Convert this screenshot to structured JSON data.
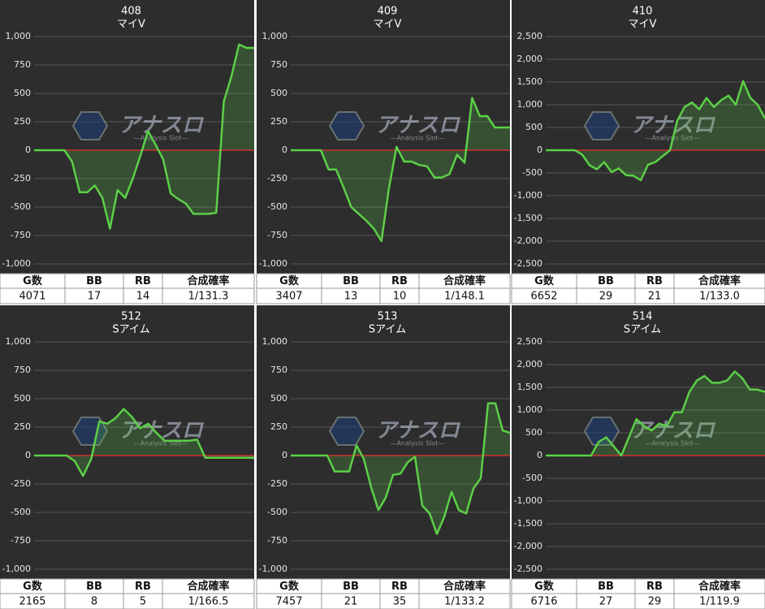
{
  "watermark": {
    "title": "アナスロ",
    "subtitle": "—Analysis Slot—"
  },
  "chart_data": [
    {
      "type": "line",
      "title": "408",
      "subtitle": "マイV",
      "color": "#5ccf48",
      "zero_line_color": "#c8322c",
      "grid": true,
      "ylim": [
        -1000,
        1000
      ],
      "yticks": [
        {
          "value": -1000,
          "label": "-1,000"
        },
        -750,
        -500,
        -250,
        0,
        250,
        500,
        750,
        {
          "value": 1000,
          "label": "1,000"
        }
      ],
      "values": [
        0,
        0,
        0,
        0,
        0,
        -100,
        -370,
        -370,
        -310,
        -420,
        -690,
        -350,
        -420,
        -250,
        -50,
        170,
        50,
        -80,
        -380,
        -430,
        -470,
        -560,
        -560,
        -560,
        -550,
        430,
        650,
        930,
        900,
        900
      ],
      "table": {
        "header": [
          "G数",
          "BB",
          "RB",
          "合成確率"
        ],
        "row": [
          4071,
          17,
          14,
          "1/131.3"
        ]
      }
    },
    {
      "type": "line",
      "title": "409",
      "subtitle": "マイV",
      "color": "#5ccf48",
      "zero_line_color": "#c8322c",
      "grid": true,
      "ylim": [
        -1000,
        1000
      ],
      "yticks": [
        {
          "value": -1000,
          "label": "-1,000"
        },
        -750,
        -500,
        -250,
        0,
        250,
        500,
        750,
        {
          "value": 1000,
          "label": "1,000"
        }
      ],
      "values": [
        0,
        0,
        0,
        0,
        0,
        -170,
        -170,
        -330,
        -500,
        -560,
        -620,
        -690,
        -800,
        -330,
        30,
        -100,
        -100,
        -130,
        -140,
        -240,
        -240,
        -210,
        -40,
        -110,
        460,
        300,
        300,
        200,
        200,
        200
      ],
      "table": {
        "header": [
          "G数",
          "BB",
          "RB",
          "合成確率"
        ],
        "row": [
          3407,
          13,
          10,
          "1/148.1"
        ]
      }
    },
    {
      "type": "line",
      "title": "410",
      "subtitle": "マイV",
      "color": "#5ccf48",
      "zero_line_color": "#c8322c",
      "grid": true,
      "ylim": [
        -2500,
        2500
      ],
      "yticks": [
        {
          "value": -2500,
          "label": "-2,500"
        },
        {
          "value": -2000,
          "label": "-2,000"
        },
        {
          "value": -1500,
          "label": "-1,500"
        },
        {
          "value": -1000,
          "label": "-1,000"
        },
        -500,
        0,
        500,
        {
          "value": 1000,
          "label": "1,000"
        },
        {
          "value": 1500,
          "label": "1,500"
        },
        {
          "value": 2000,
          "label": "2,000"
        },
        {
          "value": 2500,
          "label": "2,500"
        }
      ],
      "values": [
        0,
        0,
        0,
        0,
        0,
        -100,
        -330,
        -420,
        -260,
        -480,
        -400,
        -550,
        -560,
        -660,
        -320,
        -260,
        -130,
        0,
        650,
        950,
        1050,
        900,
        1150,
        950,
        1100,
        1200,
        1000,
        1520,
        1150,
        1000,
        700
      ],
      "table": {
        "header": [
          "G数",
          "BB",
          "RB",
          "合成確率"
        ],
        "row": [
          6652,
          29,
          21,
          "1/133.0"
        ]
      }
    },
    {
      "type": "line",
      "title": "512",
      "subtitle": "Sアイム",
      "color": "#5ccf48",
      "zero_line_color": "#c8322c",
      "grid": true,
      "ylim": [
        -1000,
        1000
      ],
      "yticks": [
        {
          "value": -1000,
          "label": "-1,000"
        },
        -750,
        -500,
        -250,
        0,
        250,
        500,
        750,
        {
          "value": 1000,
          "label": "1,000"
        }
      ],
      "values": [
        0,
        0,
        0,
        0,
        0,
        -50,
        -180,
        -30,
        300,
        280,
        330,
        410,
        340,
        240,
        280,
        200,
        130,
        130,
        130,
        130,
        140,
        -20,
        -20,
        -20,
        -20,
        -20,
        -20,
        -20
      ],
      "table": {
        "header": [
          "G数",
          "BB",
          "RB",
          "合成確率"
        ],
        "row": [
          2165,
          8,
          5,
          "1/166.5"
        ]
      }
    },
    {
      "type": "line",
      "title": "513",
      "subtitle": "Sアイム",
      "color": "#5ccf48",
      "zero_line_color": "#c8322c",
      "grid": true,
      "ylim": [
        -1000,
        1000
      ],
      "yticks": [
        {
          "value": -1000,
          "label": "-1,000"
        },
        -750,
        -500,
        -250,
        0,
        250,
        500,
        750,
        {
          "value": 1000,
          "label": "1,000"
        }
      ],
      "values": [
        0,
        0,
        0,
        0,
        0,
        0,
        -140,
        -140,
        -140,
        90,
        -30,
        -280,
        -480,
        -370,
        -170,
        -160,
        -60,
        -10,
        -440,
        -510,
        -690,
        -540,
        -320,
        -480,
        -510,
        -290,
        -200,
        460,
        460,
        220,
        200
      ],
      "table": {
        "header": [
          "G数",
          "BB",
          "RB",
          "合成確率"
        ],
        "row": [
          7457,
          21,
          35,
          "1/133.2"
        ]
      }
    },
    {
      "type": "line",
      "title": "514",
      "subtitle": "Sアイム",
      "color": "#5ccf48",
      "zero_line_color": "#c8322c",
      "grid": true,
      "ylim": [
        -2500,
        2500
      ],
      "yticks": [
        {
          "value": -2500,
          "label": "-2,500"
        },
        {
          "value": -2000,
          "label": "-2,000"
        },
        {
          "value": -1500,
          "label": "-1,500"
        },
        {
          "value": -1000,
          "label": "-1,000"
        },
        -500,
        0,
        500,
        {
          "value": 1000,
          "label": "1,000"
        },
        {
          "value": 1500,
          "label": "1,500"
        },
        {
          "value": 2000,
          "label": "2,000"
        },
        {
          "value": 2500,
          "label": "2,500"
        }
      ],
      "values": [
        0,
        0,
        0,
        0,
        0,
        0,
        0,
        300,
        400,
        200,
        0,
        400,
        800,
        650,
        550,
        700,
        650,
        950,
        950,
        1400,
        1650,
        1750,
        1600,
        1600,
        1650,
        1850,
        1700,
        1450,
        1450,
        1400
      ],
      "table": {
        "header": [
          "G数",
          "BB",
          "RB",
          "合成確率"
        ],
        "row": [
          6716,
          27,
          29,
          "1/119.9"
        ]
      }
    }
  ]
}
